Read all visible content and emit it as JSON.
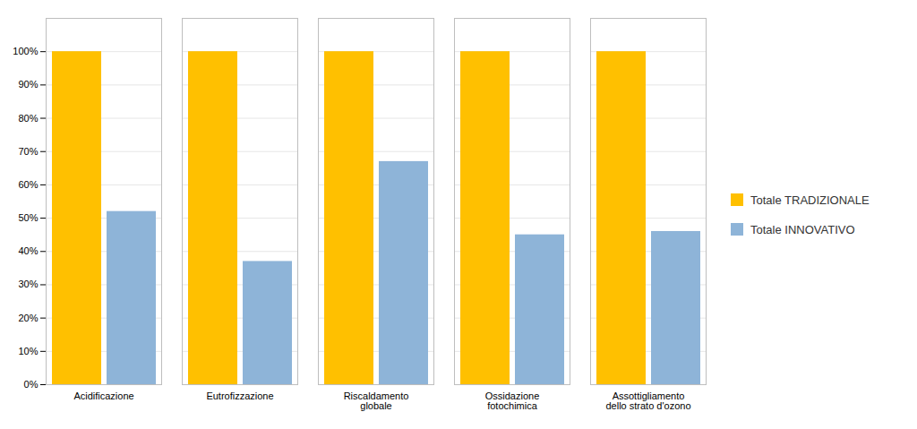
{
  "chart_data": {
    "type": "bar",
    "categories": [
      "Acidificazione",
      "Eutrofizzazione",
      "Riscaldamento\nglobale",
      "Ossidazione\nfotochimica",
      "Assottigliamento\ndello strato d'ozono"
    ],
    "series": [
      {
        "name": "Totale TRADIZIONALE",
        "color": "#FFC000",
        "values": [
          100,
          100,
          100,
          100,
          100
        ]
      },
      {
        "name": "Totale INNOVATIVO",
        "color": "#8EB4D8",
        "values": [
          52,
          37,
          67,
          45,
          46
        ]
      }
    ],
    "ylim": [
      0,
      110
    ],
    "yticks": [
      {
        "value": 0,
        "label": "0%"
      },
      {
        "value": 10,
        "label": "10%"
      },
      {
        "value": 20,
        "label": "20%"
      },
      {
        "value": 30,
        "label": "30%"
      },
      {
        "value": 40,
        "label": "40%"
      },
      {
        "value": 50,
        "label": "50%"
      },
      {
        "value": 60,
        "label": "60%"
      },
      {
        "value": 70,
        "label": "70%"
      },
      {
        "value": 80,
        "label": "80%"
      },
      {
        "value": 90,
        "label": "90%"
      },
      {
        "value": 100,
        "label": "100%"
      }
    ],
    "grid": true,
    "legend": "right"
  }
}
